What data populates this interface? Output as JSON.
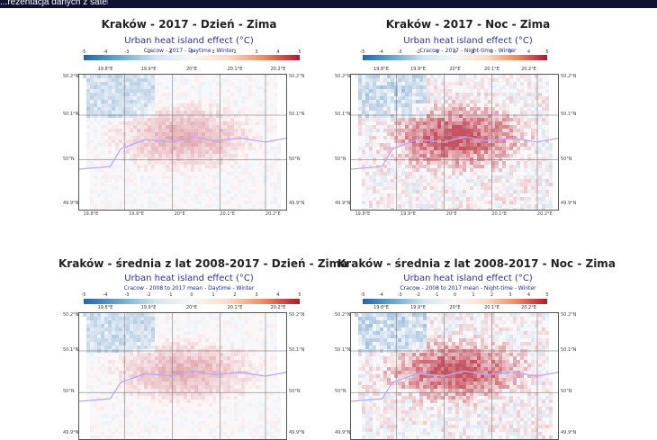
{
  "header": {
    "text": "...rezentacja danych z satelity ..."
  },
  "colorbar": {
    "ticks": [
      "-5",
      "-4",
      "-3",
      "-2",
      "-1",
      "0",
      "1",
      "2",
      "3",
      "4",
      "5"
    ],
    "coord_ticks": [
      "19.8°E",
      "19.9°E",
      "20°E",
      "20.1°E",
      "20.2°E"
    ]
  },
  "axes": {
    "lat_labels": [
      "50.2°N",
      "50.1°N",
      "50°N",
      "49.9°N"
    ],
    "lon_labels": [
      "19.8°E",
      "19.9°E",
      "20°E",
      "20.1°E",
      "20.2°E"
    ]
  },
  "panels": [
    {
      "title": "Kraków - 2017 - Dzień - Zima",
      "map_title": "Urban heat island effect (°C)",
      "subtitle": "Cracow - 2017 - Daytime - Winter",
      "variant": "day"
    },
    {
      "title": "Kraków - 2017 - Noc - Zima",
      "map_title": "Urban heat island effect (°C)",
      "subtitle": "Cracow - 2017 - Night-time - Winter",
      "variant": "night"
    },
    {
      "title": "Kraków - średnia z lat 2008-2017 - Dzień - Zima",
      "map_title": "Urban heat island effect (°C)",
      "subtitle": "Cracow - 2008 to 2017 mean - Daytime - Winter",
      "variant": "day"
    },
    {
      "title": "Kraków - średnia z lat 2008-2017 - Noc - Zima",
      "map_title": "Urban heat island effect (°C)",
      "subtitle": "Cracow - 2008 to 2017 mean - Night-time - Winter",
      "variant": "night"
    }
  ],
  "colors": {
    "cold": "#2166ac",
    "neutral": "#f7f7f7",
    "warm": "#b2182b",
    "river": "#b9a8ff",
    "header_bg": "#0f1230"
  }
}
